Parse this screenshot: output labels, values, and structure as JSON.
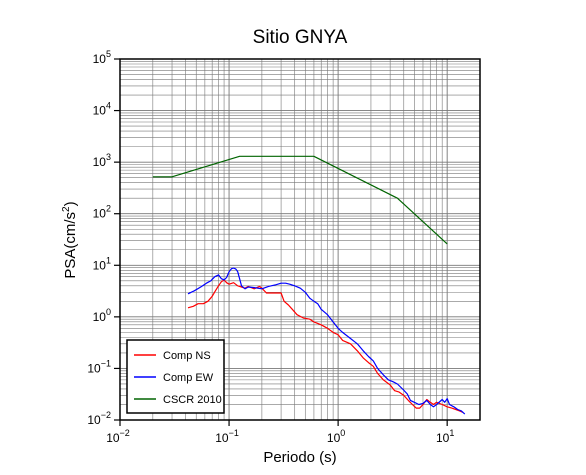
{
  "chart_data": {
    "type": "line",
    "title": "Sitio GNYA",
    "xlabel": "Periodo (s)",
    "ylabel_main": "PSA(cm/s",
    "ylabel_sup": "2",
    "ylabel_end": ")",
    "x_scale": "log",
    "y_scale": "log",
    "xlim": [
      0.01,
      20
    ],
    "ylim": [
      0.01,
      100000
    ],
    "grid": true,
    "legend_position": "bottom-left",
    "x_ticks": [
      {
        "value": 0.01,
        "base": "10",
        "exp": "−2"
      },
      {
        "value": 0.1,
        "base": "10",
        "exp": "−1"
      },
      {
        "value": 1,
        "base": "10",
        "exp": "0"
      },
      {
        "value": 10,
        "base": "10",
        "exp": "1"
      }
    ],
    "y_ticks": [
      {
        "value": 0.01,
        "base": "10",
        "exp": "−2"
      },
      {
        "value": 0.1,
        "base": "10",
        "exp": "−1"
      },
      {
        "value": 1,
        "base": "10",
        "exp": "0"
      },
      {
        "value": 10,
        "base": "10",
        "exp": "1"
      },
      {
        "value": 100,
        "base": "10",
        "exp": "2"
      },
      {
        "value": 1000,
        "base": "10",
        "exp": "3"
      },
      {
        "value": 10000,
        "base": "10",
        "exp": "4"
      },
      {
        "value": 100000,
        "base": "10",
        "exp": "5"
      }
    ],
    "series": [
      {
        "name": "Comp NS",
        "color": "#ff0000",
        "points": [
          [
            0.042,
            1.5
          ],
          [
            0.047,
            1.6
          ],
          [
            0.052,
            1.8
          ],
          [
            0.058,
            1.8
          ],
          [
            0.064,
            2.0
          ],
          [
            0.07,
            2.5
          ],
          [
            0.075,
            3.2
          ],
          [
            0.08,
            4.0
          ],
          [
            0.085,
            4.8
          ],
          [
            0.09,
            5.2
          ],
          [
            0.095,
            4.6
          ],
          [
            0.1,
            4.3
          ],
          [
            0.11,
            4.6
          ],
          [
            0.12,
            4.0
          ],
          [
            0.13,
            3.8
          ],
          [
            0.14,
            3.6
          ],
          [
            0.15,
            3.9
          ],
          [
            0.17,
            3.5
          ],
          [
            0.19,
            3.9
          ],
          [
            0.2,
            3.6
          ],
          [
            0.22,
            2.9
          ],
          [
            0.26,
            2.9
          ],
          [
            0.3,
            2.9
          ],
          [
            0.32,
            2.0
          ],
          [
            0.35,
            1.7
          ],
          [
            0.38,
            1.4
          ],
          [
            0.42,
            1.1
          ],
          [
            0.48,
            0.95
          ],
          [
            0.55,
            0.9
          ],
          [
            0.6,
            0.8
          ],
          [
            0.7,
            0.7
          ],
          [
            0.8,
            0.6
          ],
          [
            0.9,
            0.5
          ],
          [
            1.0,
            0.45
          ],
          [
            1.1,
            0.35
          ],
          [
            1.3,
            0.3
          ],
          [
            1.5,
            0.22
          ],
          [
            1.7,
            0.16
          ],
          [
            1.9,
            0.13
          ],
          [
            2.1,
            0.11
          ],
          [
            2.3,
            0.08
          ],
          [
            2.6,
            0.06
          ],
          [
            3.0,
            0.048
          ],
          [
            3.3,
            0.037
          ],
          [
            3.6,
            0.035
          ],
          [
            4.0,
            0.03
          ],
          [
            4.4,
            0.024
          ],
          [
            4.8,
            0.02
          ],
          [
            5.2,
            0.017
          ],
          [
            5.6,
            0.017
          ],
          [
            6.0,
            0.02
          ],
          [
            6.5,
            0.025
          ],
          [
            7.0,
            0.022
          ],
          [
            7.5,
            0.02
          ],
          [
            8.0,
            0.022
          ],
          [
            9.0,
            0.02
          ],
          [
            10.0,
            0.018
          ],
          [
            11.0,
            0.017
          ],
          [
            12.0,
            0.016
          ],
          [
            13.0,
            0.015
          ],
          [
            14.0,
            0.014
          ]
        ]
      },
      {
        "name": "Comp EW",
        "color": "#0000ff",
        "points": [
          [
            0.042,
            2.8
          ],
          [
            0.048,
            3.2
          ],
          [
            0.055,
            3.8
          ],
          [
            0.062,
            4.5
          ],
          [
            0.068,
            5.0
          ],
          [
            0.074,
            6.0
          ],
          [
            0.08,
            6.5
          ],
          [
            0.085,
            5.5
          ],
          [
            0.09,
            5.2
          ],
          [
            0.095,
            5.8
          ],
          [
            0.1,
            7.5
          ],
          [
            0.105,
            8.6
          ],
          [
            0.11,
            8.8
          ],
          [
            0.115,
            8.5
          ],
          [
            0.12,
            7.5
          ],
          [
            0.125,
            5.5
          ],
          [
            0.13,
            4.0
          ],
          [
            0.14,
            3.5
          ],
          [
            0.15,
            3.8
          ],
          [
            0.17,
            3.7
          ],
          [
            0.2,
            3.5
          ],
          [
            0.23,
            3.9
          ],
          [
            0.27,
            4.2
          ],
          [
            0.3,
            4.5
          ],
          [
            0.33,
            4.5
          ],
          [
            0.36,
            4.3
          ],
          [
            0.4,
            4.0
          ],
          [
            0.45,
            3.6
          ],
          [
            0.5,
            3.0
          ],
          [
            0.55,
            2.3
          ],
          [
            0.6,
            2.0
          ],
          [
            0.65,
            1.8
          ],
          [
            0.7,
            1.4
          ],
          [
            0.8,
            1.1
          ],
          [
            0.9,
            0.8
          ],
          [
            1.0,
            0.6
          ],
          [
            1.1,
            0.5
          ],
          [
            1.3,
            0.38
          ],
          [
            1.5,
            0.3
          ],
          [
            1.7,
            0.22
          ],
          [
            1.9,
            0.17
          ],
          [
            2.1,
            0.14
          ],
          [
            2.3,
            0.1
          ],
          [
            2.6,
            0.075
          ],
          [
            2.9,
            0.06
          ],
          [
            3.2,
            0.055
          ],
          [
            3.5,
            0.05
          ],
          [
            3.9,
            0.04
          ],
          [
            4.3,
            0.032
          ],
          [
            4.6,
            0.024
          ],
          [
            5.0,
            0.022
          ],
          [
            5.5,
            0.02
          ],
          [
            6.0,
            0.021
          ],
          [
            6.5,
            0.024
          ],
          [
            7.0,
            0.02
          ],
          [
            7.5,
            0.018
          ],
          [
            8.0,
            0.02
          ],
          [
            9.0,
            0.025
          ],
          [
            9.5,
            0.022
          ],
          [
            10.0,
            0.026
          ],
          [
            10.5,
            0.02
          ],
          [
            11.5,
            0.018
          ],
          [
            12.5,
            0.016
          ],
          [
            13.5,
            0.015
          ],
          [
            14.5,
            0.013
          ]
        ]
      },
      {
        "name": "CSCR 2010",
        "color": "#006400",
        "points": [
          [
            0.02,
            520
          ],
          [
            0.03,
            520
          ],
          [
            0.125,
            1300
          ],
          [
            0.6,
            1300
          ],
          [
            3.5,
            200
          ],
          [
            10.0,
            26
          ]
        ]
      }
    ]
  }
}
